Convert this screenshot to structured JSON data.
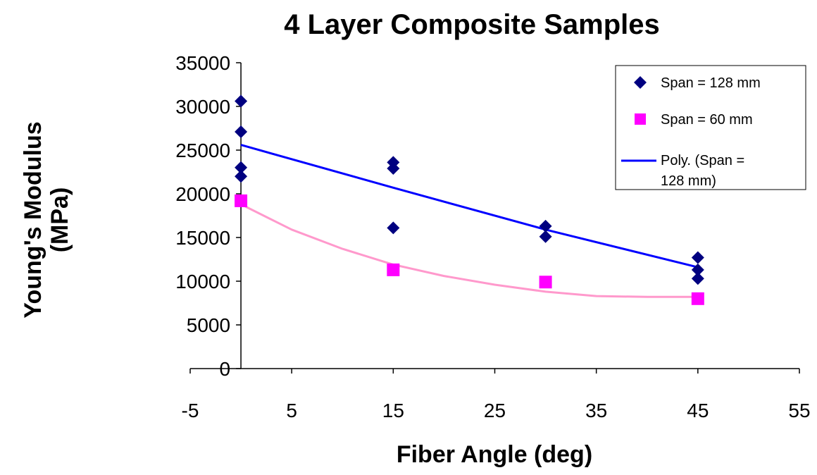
{
  "chart_data": {
    "type": "scatter",
    "title": "4 Layer Composite Samples",
    "xlabel": "Fiber Angle (deg)",
    "ylabel_lines": [
      "Young's Modulus",
      "(MPa)"
    ],
    "xlim": [
      -5,
      55
    ],
    "ylim": [
      0,
      35000
    ],
    "xticks": [
      -5,
      5,
      15,
      25,
      35,
      45,
      55
    ],
    "yticks": [
      0,
      5000,
      10000,
      15000,
      20000,
      25000,
      30000,
      35000
    ],
    "grid": false,
    "legend_position": "top-right",
    "series": [
      {
        "name": "Span = 128 mm",
        "marker": "diamond",
        "color": "#000080",
        "points": [
          [
            0,
            30600
          ],
          [
            0,
            27100
          ],
          [
            0,
            23000
          ],
          [
            0,
            22000
          ],
          [
            15,
            23600
          ],
          [
            15,
            22900
          ],
          [
            15,
            16100
          ],
          [
            30,
            16300
          ],
          [
            30,
            15100
          ],
          [
            45,
            12700
          ],
          [
            45,
            11300
          ],
          [
            45,
            10300
          ]
        ]
      },
      {
        "name": "Span = 60 mm",
        "marker": "square",
        "color": "#ff00ff",
        "points": [
          [
            0,
            19200
          ],
          [
            15,
            11300
          ],
          [
            30,
            9900
          ],
          [
            45,
            8000
          ]
        ]
      }
    ],
    "trendlines": [
      {
        "name_lines": [
          "Poly. (Span =",
          "128 mm)"
        ],
        "color": "#0000ff",
        "curve": [
          [
            0,
            25600
          ],
          [
            15,
            20700
          ],
          [
            30,
            15900
          ],
          [
            45,
            11600
          ]
        ]
      },
      {
        "color": "#ff99cc",
        "curve": [
          [
            0,
            18800
          ],
          [
            5,
            15900
          ],
          [
            10,
            13700
          ],
          [
            15,
            11900
          ],
          [
            20,
            10600
          ],
          [
            25,
            9600
          ],
          [
            30,
            8800
          ],
          [
            35,
            8300
          ],
          [
            40,
            8200
          ],
          [
            45,
            8200
          ]
        ]
      }
    ]
  }
}
